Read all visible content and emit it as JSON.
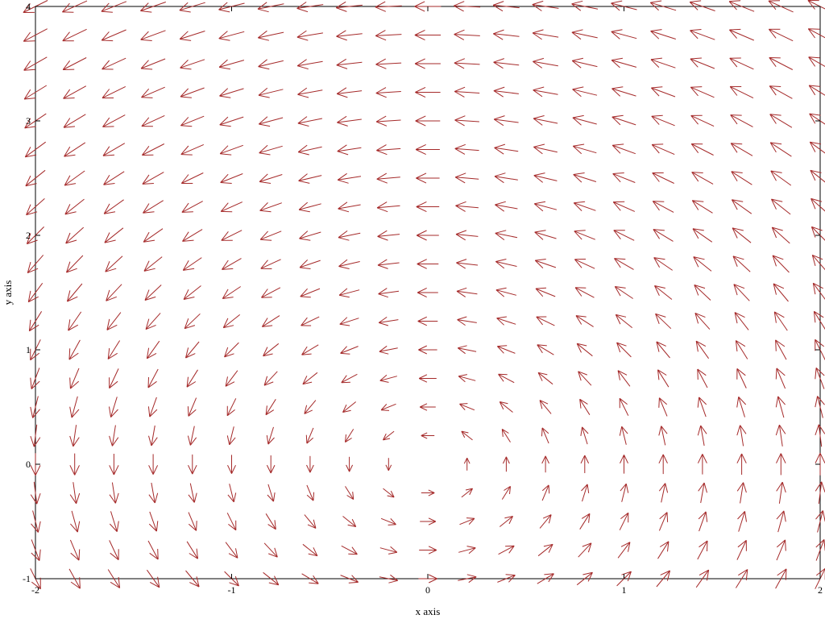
{
  "chart_data": {
    "type": "vector-field",
    "xlabel": "x axis",
    "ylabel": "y axis",
    "xlim": [
      -2,
      2
    ],
    "ylim": [
      -1,
      4
    ],
    "xticks": [
      {
        "value": -2,
        "label": "-2"
      },
      {
        "value": -1,
        "label": "-1"
      },
      {
        "value": 0,
        "label": "0"
      },
      {
        "value": 1,
        "label": "1"
      },
      {
        "value": 2,
        "label": "2"
      }
    ],
    "yticks": [
      {
        "value": -1,
        "label": "-1"
      },
      {
        "value": 0,
        "label": "0"
      },
      {
        "value": 1,
        "label": "1"
      },
      {
        "value": 2,
        "label": "2"
      },
      {
        "value": 3,
        "label": "3"
      },
      {
        "value": 4,
        "label": "4"
      }
    ],
    "grid": false,
    "arrow_color": "#a52a2a",
    "field": {
      "u": "-y",
      "v": "x",
      "description": "rotational field (-y, x)"
    },
    "samples_x": 20,
    "samples_y": 20
  }
}
